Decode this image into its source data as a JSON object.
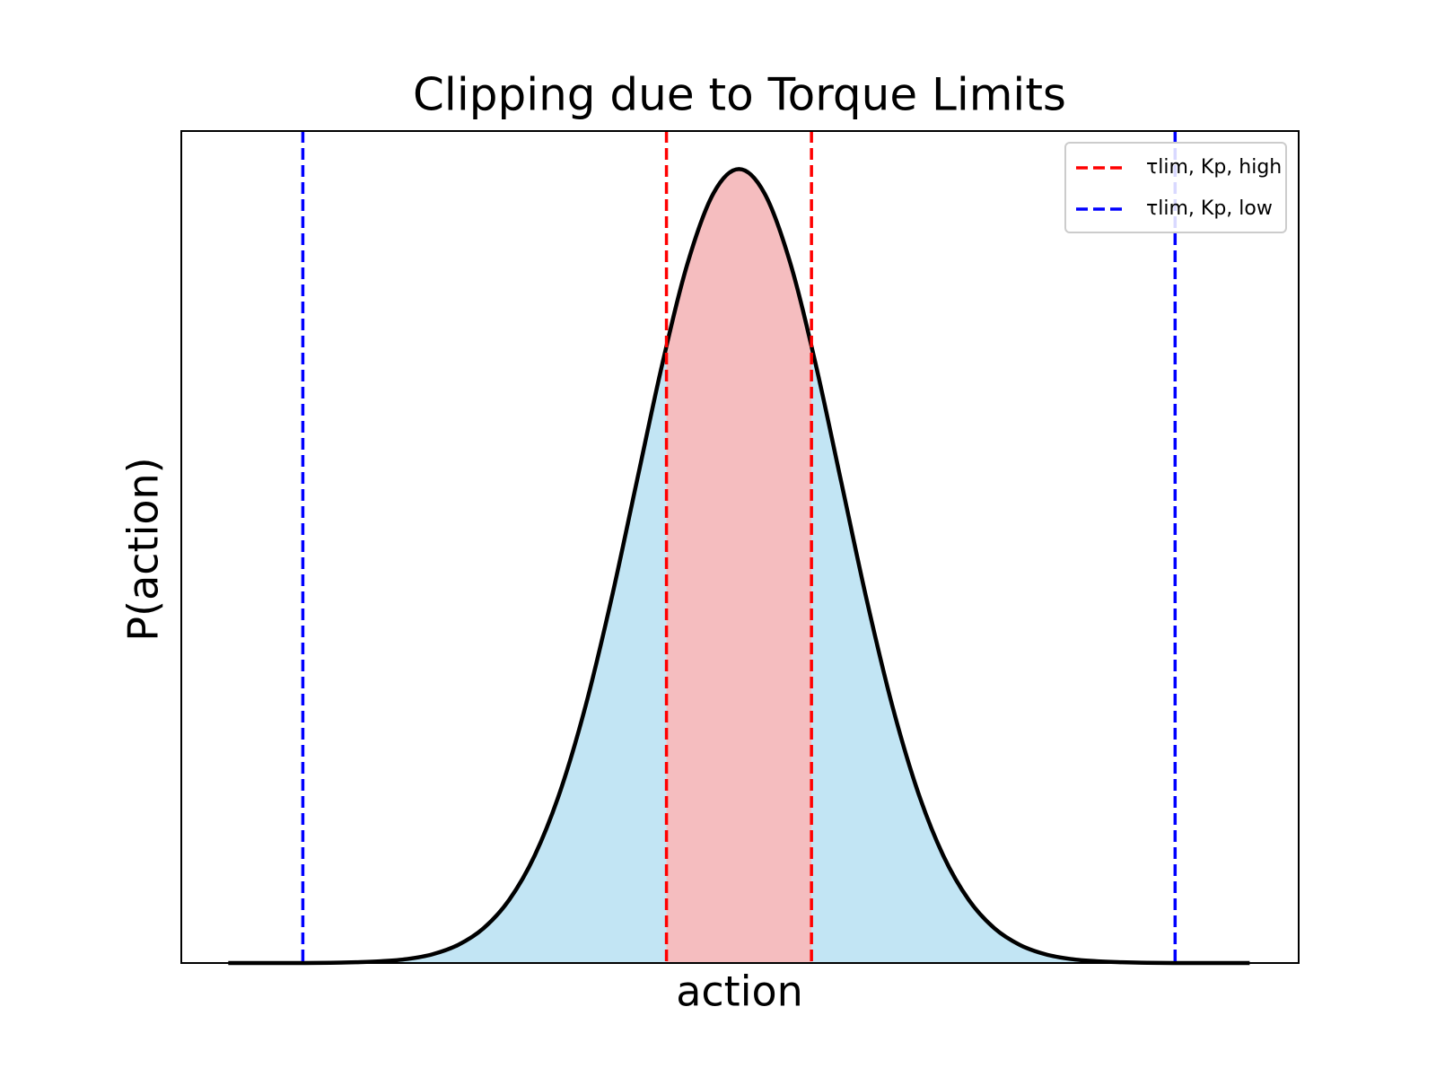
{
  "chart_data": {
    "type": "line",
    "title": "Clipping due to Torque Limits",
    "xlabel": "action",
    "ylabel": "P(action)",
    "xlim": [
      -5.46,
      5.48
    ],
    "ylim": [
      0,
      0.418
    ],
    "x": [
      -5,
      -4.75,
      -4.5,
      -4.25,
      -4,
      -3.75,
      -3.5,
      -3.25,
      -3,
      -2.75,
      -2.5,
      -2.25,
      -2,
      -1.75,
      -1.5,
      -1.25,
      -1,
      -0.75,
      -0.5,
      -0.25,
      0,
      0.25,
      0.5,
      0.75,
      1,
      1.25,
      1.5,
      1.75,
      2,
      2.25,
      2.5,
      2.75,
      3,
      3.25,
      3.5,
      3.75,
      4,
      4.25,
      4.5,
      4.75,
      5
    ],
    "values": [
      0,
      0,
      0,
      0,
      0.0001,
      0.0004,
      0.0009,
      0.002,
      0.0044,
      0.0091,
      0.0175,
      0.0317,
      0.054,
      0.0863,
      0.1295,
      0.1826,
      0.242,
      0.3011,
      0.3521,
      0.3867,
      0.3989,
      0.3867,
      0.3521,
      0.3011,
      0.242,
      0.1826,
      0.1295,
      0.0863,
      0.054,
      0.0317,
      0.0175,
      0.0091,
      0.0044,
      0.002,
      0.0009,
      0.0004,
      0.0001,
      0,
      0,
      0,
      0
    ],
    "color": "#000000",
    "fill_color": "#c2e5f4",
    "highlight_color": "#f5bdbf",
    "vlines": [
      {
        "name": "τlim, Kp, high",
        "color": "#ff0000",
        "x": [
          -0.71,
          0.71
        ]
      },
      {
        "name": "τlim, Kp, low",
        "color": "#0000ff",
        "x": [
          -4.27,
          4.27
        ]
      }
    ],
    "legend": "upper right"
  }
}
